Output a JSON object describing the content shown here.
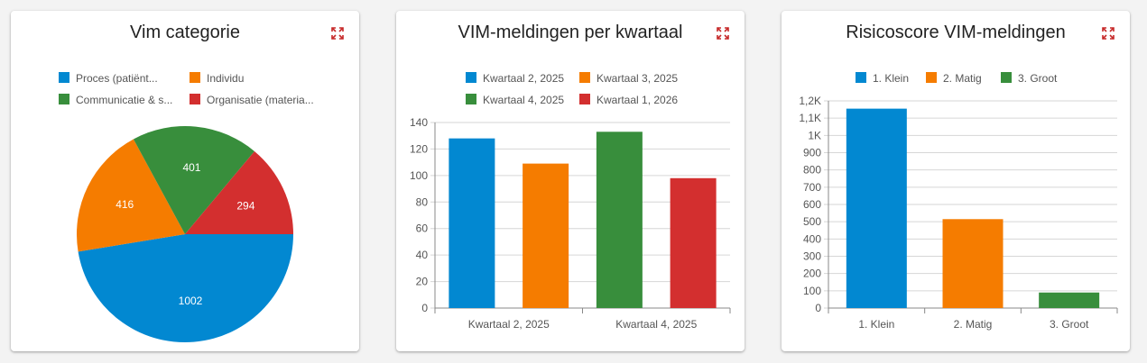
{
  "cards": [
    {
      "title": "Vim categorie",
      "chart_data": {
        "type": "pie",
        "labels": [
          "Proces (patiënt...",
          "Individu",
          "Communicatie & s...",
          "Organisatie (materia..."
        ],
        "values": [
          1002,
          416,
          401,
          294
        ],
        "colors": [
          "#0288d1",
          "#f57c00",
          "#388e3c",
          "#d32f2f"
        ],
        "legend_position": "top"
      }
    },
    {
      "title": "VIM-meldingen per kwartaal",
      "chart_data": {
        "type": "bar",
        "categories": [
          "Kwartaal 2, 2025",
          "Kwartaal 3, 2025",
          "Kwartaal 4, 2025",
          "Kwartaal 1, 2026"
        ],
        "values": [
          128,
          109,
          133,
          98
        ],
        "colors": [
          "#0288d1",
          "#f57c00",
          "#388e3c",
          "#d32f2f"
        ],
        "x_tick_labels": [
          "Kwartaal 2, 2025",
          "Kwartaal 4, 2025"
        ],
        "y_ticks": [
          "0",
          "20",
          "40",
          "60",
          "80",
          "100",
          "120",
          "140"
        ],
        "ylim": [
          0,
          140
        ],
        "legend_position": "top",
        "grid": true
      }
    },
    {
      "title": "Risicoscore VIM-meldingen",
      "chart_data": {
        "type": "bar",
        "categories": [
          "1. Klein",
          "2. Matig",
          "3. Groot"
        ],
        "values": [
          1155,
          515,
          90
        ],
        "colors": [
          "#0288d1",
          "#f57c00",
          "#388e3c"
        ],
        "y_ticks": [
          "0",
          "100",
          "200",
          "300",
          "400",
          "500",
          "600",
          "700",
          "800",
          "900",
          "1K",
          "1,1K",
          "1,2K"
        ],
        "ylim": [
          0,
          1200
        ],
        "legend_position": "top",
        "grid": true
      }
    }
  ],
  "icons": {
    "expand": "expand-icon"
  },
  "colors": {
    "expand_icon": "#c62828"
  }
}
